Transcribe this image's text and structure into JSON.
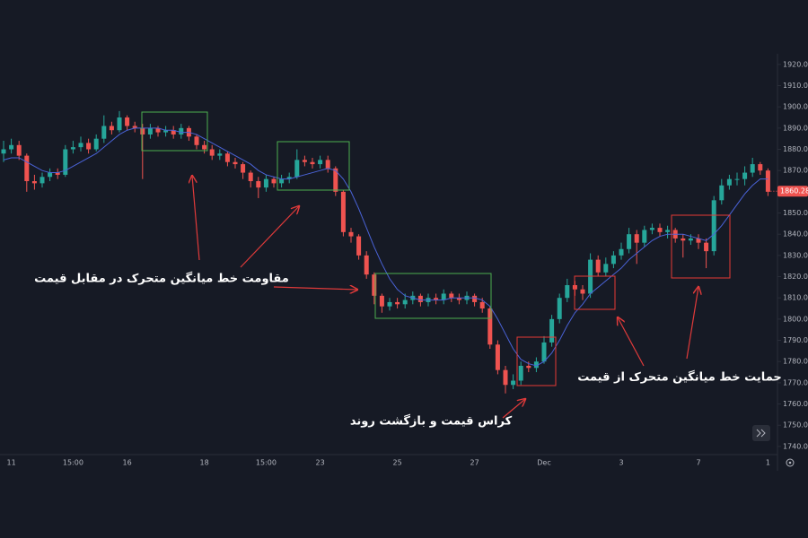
{
  "chart_data": {
    "type": "candlestick",
    "categories": [
      null,
      "11",
      null,
      null,
      null,
      null,
      null,
      null,
      null,
      "15:00",
      null,
      null,
      null,
      null,
      null,
      null,
      "16",
      null,
      null,
      null,
      null,
      null,
      null,
      null,
      null,
      null,
      "18",
      null,
      null,
      null,
      null,
      null,
      null,
      null,
      "15:00",
      null,
      null,
      null,
      null,
      null,
      null,
      "23",
      null,
      null,
      null,
      null,
      null,
      null,
      null,
      null,
      null,
      "25",
      null,
      null,
      null,
      null,
      null,
      null,
      null,
      null,
      null,
      "27",
      null,
      null,
      null,
      null,
      null,
      null,
      null,
      null,
      "Dec",
      null,
      null,
      null,
      null,
      null,
      null,
      null,
      null,
      null,
      "3",
      null,
      null,
      null,
      null,
      null,
      null,
      null,
      null,
      null,
      "7",
      null,
      null,
      null,
      null,
      null,
      null,
      null,
      null,
      "1"
    ],
    "open": [
      1878,
      1880,
      1882,
      1877,
      1865,
      1864,
      1867,
      1869,
      1868,
      1880,
      1881,
      1883,
      1880,
      1885,
      1891,
      1889,
      1895,
      1891,
      1890,
      1887,
      1890,
      1888,
      1889,
      1887,
      1890,
      1886,
      1882,
      1880,
      1877,
      1878,
      1874,
      1873,
      1869,
      1865,
      1862,
      1866,
      1864,
      1866,
      1867,
      1875,
      1874,
      1873,
      1875,
      1871,
      1860,
      1841,
      1839,
      1830,
      1821,
      1811,
      1806,
      1808,
      1807,
      1809,
      1811,
      1808,
      1810,
      1809,
      1812,
      1810,
      1809,
      1811,
      1808,
      1805,
      1788,
      1776,
      1769,
      1771,
      1778,
      1777,
      1780,
      1789,
      1800,
      1810,
      1816,
      1814,
      1812,
      1828,
      1822,
      1826,
      1830,
      1833,
      1840,
      1836,
      1842,
      1843,
      1841,
      1842,
      1838,
      1837,
      1838,
      1836,
      1832,
      1856,
      1863,
      1866,
      1866,
      1869,
      1873,
      1870
    ],
    "high": [
      1884,
      1885,
      1884,
      1878,
      1868,
      1869,
      1871,
      1871,
      1882,
      1884,
      1886,
      1885,
      1887,
      1896,
      1893,
      1898,
      1896,
      1893,
      1892,
      1892,
      1891,
      1891,
      1891,
      1892,
      1891,
      1887,
      1884,
      1882,
      1880,
      1879,
      1876,
      1874,
      1870,
      1867,
      1868,
      1867,
      1868,
      1869,
      1880,
      1877,
      1876,
      1877,
      1877,
      1872,
      1861,
      1843,
      1840,
      1832,
      1822,
      1812,
      1810,
      1810,
      1812,
      1813,
      1812,
      1812,
      1812,
      1814,
      1813,
      1812,
      1813,
      1812,
      1810,
      1806,
      1790,
      1778,
      1774,
      1780,
      1780,
      1782,
      1792,
      1802,
      1812,
      1819,
      1818,
      1816,
      1831,
      1830,
      1829,
      1832,
      1836,
      1843,
      1842,
      1844,
      1845,
      1845,
      1844,
      1843,
      1840,
      1840,
      1840,
      1838,
      1858,
      1866,
      1868,
      1869,
      1872,
      1876,
      1874,
      1871
    ],
    "low": [
      1874,
      1878,
      1875,
      1860,
      1861,
      1862,
      1865,
      1866,
      1867,
      1878,
      1879,
      1878,
      1879,
      1883,
      1887,
      1888,
      1889,
      1888,
      1866,
      1885,
      1886,
      1886,
      1885,
      1885,
      1884,
      1880,
      1878,
      1875,
      1875,
      1872,
      1871,
      1866,
      1862,
      1857,
      1860,
      1862,
      1862,
      1864,
      1866,
      1872,
      1871,
      1871,
      1869,
      1858,
      1839,
      1836,
      1828,
      1819,
      1807,
      1803,
      1804,
      1805,
      1805,
      1807,
      1806,
      1806,
      1807,
      1807,
      1808,
      1807,
      1807,
      1806,
      1803,
      1786,
      1774,
      1765,
      1767,
      1769,
      1775,
      1775,
      1779,
      1787,
      1798,
      1808,
      1811,
      1809,
      1810,
      1820,
      1820,
      1824,
      1828,
      1831,
      1826,
      1834,
      1840,
      1839,
      1838,
      1836,
      1829,
      1835,
      1833,
      1824,
      1830,
      1854,
      1861,
      1863,
      1863,
      1867,
      1868,
      1858
    ],
    "close": [
      1880,
      1882,
      1877,
      1865,
      1864,
      1867,
      1869,
      1868,
      1880,
      1881,
      1883,
      1880,
      1885,
      1891,
      1889,
      1895,
      1891,
      1890,
      1887,
      1890,
      1888,
      1889,
      1887,
      1890,
      1886,
      1882,
      1880,
      1877,
      1878,
      1874,
      1873,
      1869,
      1865,
      1862,
      1866,
      1864,
      1866,
      1867,
      1875,
      1874,
      1873,
      1875,
      1871,
      1860,
      1841,
      1839,
      1830,
      1821,
      1811,
      1806,
      1808,
      1807,
      1809,
      1811,
      1808,
      1810,
      1809,
      1812,
      1810,
      1809,
      1811,
      1808,
      1805,
      1788,
      1776,
      1769,
      1771,
      1778,
      1777,
      1780,
      1789,
      1800,
      1810,
      1816,
      1814,
      1812,
      1828,
      1822,
      1826,
      1830,
      1833,
      1840,
      1836,
      1842,
      1843,
      1841,
      1842,
      1838,
      1837,
      1838,
      1836,
      1832,
      1856,
      1863,
      1866,
      1866,
      1869,
      1873,
      1870,
      1860
    ],
    "up_color": "#26a69a",
    "down_color": "#ef5350",
    "moving_average": {
      "color": "#4a63d8",
      "values": [
        1875,
        1876,
        1876,
        1874,
        1872,
        1870,
        1869,
        1869,
        1870,
        1872,
        1874,
        1876,
        1878,
        1881,
        1884,
        1887,
        1889,
        1890,
        1890,
        1890,
        1890,
        1889,
        1889,
        1888,
        1888,
        1887,
        1885,
        1883,
        1881,
        1879,
        1877,
        1875,
        1873,
        1870,
        1868,
        1867,
        1866,
        1866,
        1867,
        1868,
        1869,
        1870,
        1871,
        1870,
        1866,
        1860,
        1852,
        1843,
        1834,
        1826,
        1819,
        1814,
        1811,
        1810,
        1809,
        1809,
        1809,
        1809,
        1810,
        1810,
        1810,
        1810,
        1809,
        1806,
        1800,
        1793,
        1786,
        1781,
        1779,
        1778,
        1780,
        1784,
        1790,
        1797,
        1803,
        1807,
        1812,
        1815,
        1818,
        1821,
        1824,
        1828,
        1831,
        1834,
        1837,
        1839,
        1840,
        1840,
        1840,
        1839,
        1838,
        1837,
        1840,
        1844,
        1849,
        1854,
        1859,
        1863,
        1866,
        1866
      ]
    },
    "ylim": [
      1737,
      1925
    ],
    "yticks": [
      {
        "value": 1740,
        "label": "1740.00"
      },
      {
        "value": 1750,
        "label": "1750.00"
      },
      {
        "value": 1760,
        "label": "1760.00"
      },
      {
        "value": 1770,
        "label": "1770.00"
      },
      {
        "value": 1780,
        "label": "1780.00"
      },
      {
        "value": 1790,
        "label": "1790.00"
      },
      {
        "value": 1800,
        "label": "1800.00"
      },
      {
        "value": 1810,
        "label": "1810.00"
      },
      {
        "value": 1820,
        "label": "1820.00"
      },
      {
        "value": 1830,
        "label": "1830.00"
      },
      {
        "value": 1840,
        "label": "1840.00"
      },
      {
        "value": 1850,
        "label": "1850.00"
      },
      {
        "value": 1860,
        "label": "1860.00"
      },
      {
        "value": 1870,
        "label": "1870.00"
      },
      {
        "value": 1880,
        "label": "1880.00"
      },
      {
        "value": 1890,
        "label": "1890.00"
      },
      {
        "value": 1900,
        "label": "1900.00"
      },
      {
        "value": 1910,
        "label": "1910.00"
      },
      {
        "value": 1920,
        "label": "1920.00"
      }
    ],
    "last_price": {
      "value": 1860.28,
      "label": "1860.28"
    },
    "last_price_color": "#ef5350",
    "annotations": [
      "مقاومت خط میانگین متحرک در مقابل قیمت",
      "کراس قیمت و بازگشت روند",
      "حمایت خط میانگین متحرک از قیمت"
    ]
  }
}
